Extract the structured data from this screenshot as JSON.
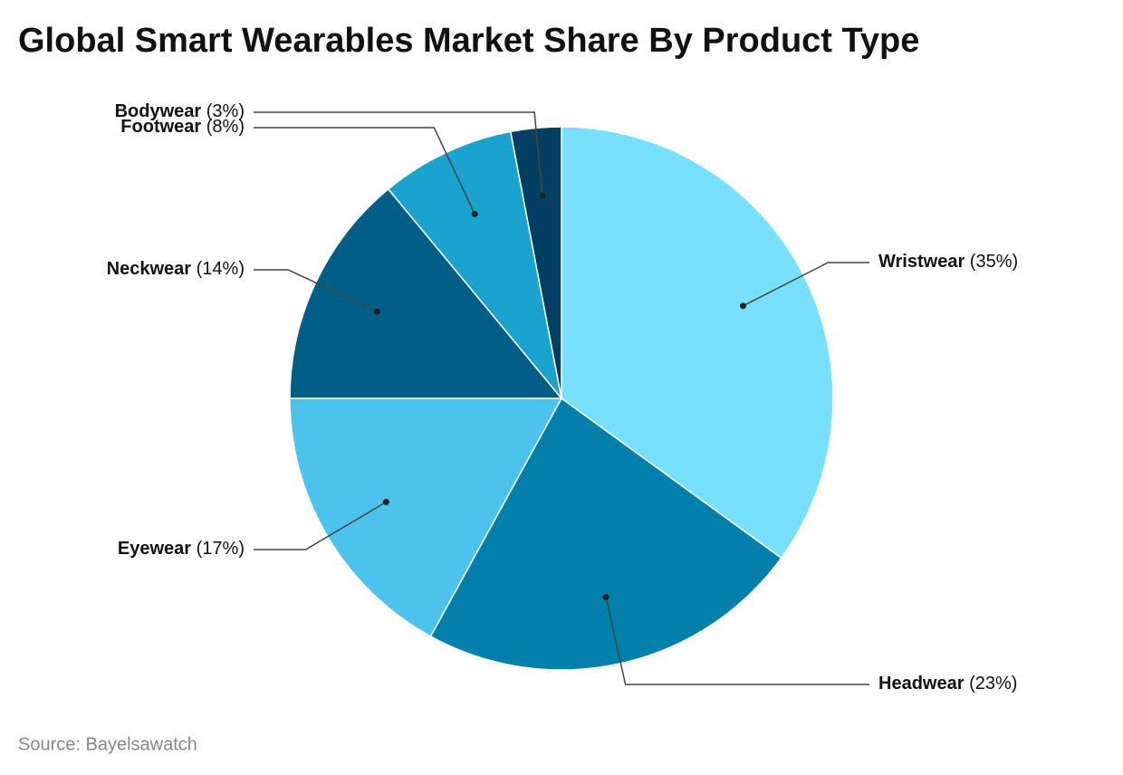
{
  "chart_data": {
    "type": "pie",
    "title": "Global Smart Wearables Market Share By Product Type",
    "source": "Source: Bayelsawatch",
    "categories": [
      "Wristwear",
      "Headwear",
      "Eyewear",
      "Neckwear",
      "Footwear",
      "Bodywear"
    ],
    "values": [
      35,
      23,
      17,
      14,
      8,
      3
    ],
    "value_labels": [
      "(35%)",
      "(23%)",
      "(17%)",
      "(14%)",
      "(8%)",
      "(3%)"
    ],
    "colors": [
      "#76e0fd",
      "#0280ab",
      "#4cc3ec",
      "#015f87",
      "#1aa3cf",
      "#033f63"
    ]
  }
}
